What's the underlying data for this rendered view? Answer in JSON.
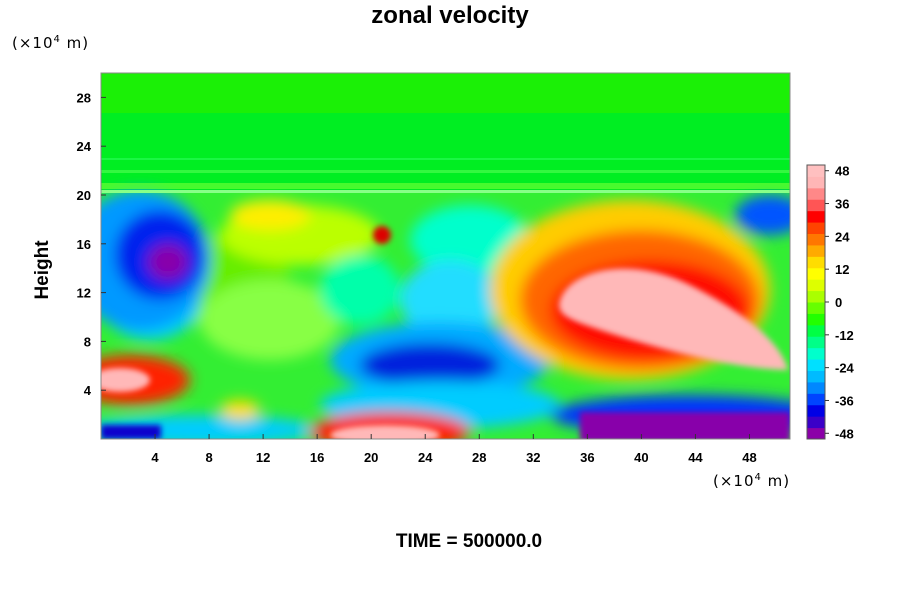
{
  "chart_data": {
    "type": "heatmap",
    "title": "zonal velocity",
    "xlabel": "",
    "ylabel": "Height",
    "x_unit_base": "(×10",
    "x_unit_exp": "4",
    "x_unit_tail": " m)",
    "y_unit_base": "(×10",
    "y_unit_exp": "4",
    "y_unit_tail": " m)",
    "xlim": [
      0,
      51
    ],
    "ylim": [
      0,
      30
    ],
    "x_ticks": [
      4,
      8,
      12,
      16,
      20,
      24,
      28,
      32,
      36,
      40,
      44,
      48
    ],
    "y_ticks": [
      4,
      8,
      12,
      16,
      20,
      24,
      28
    ],
    "colorbar": {
      "min": -48,
      "max": 48,
      "step": 4,
      "tick_labels": [
        48,
        36,
        24,
        12,
        0,
        -12,
        -24,
        -36,
        -48
      ],
      "colors": [
        "#8b00a8",
        "#3a00c8",
        "#0000e6",
        "#0044ff",
        "#0088ff",
        "#00bbff",
        "#00e0ff",
        "#00ffcc",
        "#00ff88",
        "#00ff44",
        "#22ff00",
        "#66ff00",
        "#aaff00",
        "#ddff00",
        "#ffff00",
        "#ffdd00",
        "#ffaa00",
        "#ff7700",
        "#ff4400",
        "#ff0000",
        "#ff5555",
        "#ff8888",
        "#ffb6b6",
        "#ffc0c0"
      ]
    },
    "features": [
      {
        "x": 41,
        "y": 11,
        "value": 48
      },
      {
        "x": 2,
        "y": 5,
        "value": 48
      },
      {
        "x": 24,
        "y": 1,
        "value": 48
      },
      {
        "x": 41,
        "y": 1,
        "value": -48
      },
      {
        "x": 5,
        "y": 14.5,
        "value": -48
      },
      {
        "x": 22,
        "y": 6,
        "value": -36
      },
      {
        "x": 20,
        "y": 16.5,
        "value": 36
      },
      {
        "x": 25,
        "y": 26,
        "value": 0
      }
    ]
  },
  "footer": {
    "time_label": "TIME = 500000.0"
  }
}
